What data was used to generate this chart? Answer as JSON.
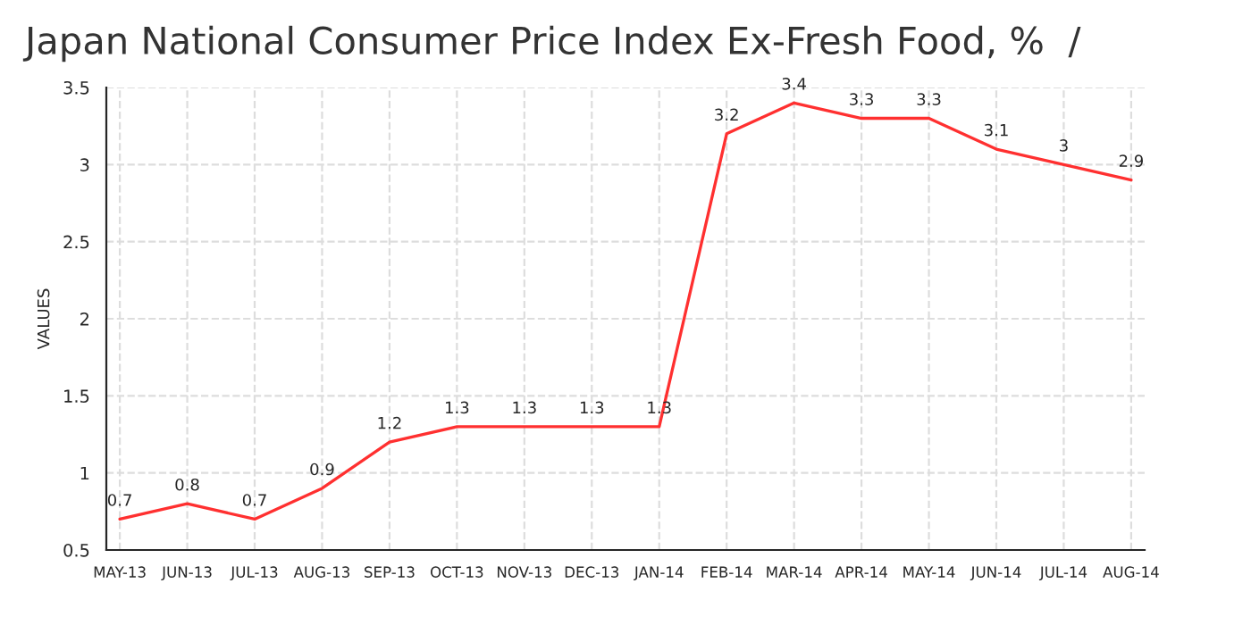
{
  "chart_data": {
    "type": "line",
    "title": "Japan National Consumer Price Index Ex-Fresh Food, %  /",
    "ylabel": "VALUES",
    "categories": [
      "MAY-13",
      "JUN-13",
      "JUL-13",
      "AUG-13",
      "SEP-13",
      "OCT-13",
      "NOV-13",
      "DEC-13",
      "JAN-14",
      "FEB-14",
      "MAR-14",
      "APR-14",
      "MAY-14",
      "JUN-14",
      "JUL-14",
      "AUG-14"
    ],
    "series": [
      {
        "color": "#ff3030",
        "values": [
          0.7,
          0.8,
          0.7,
          0.9,
          1.2,
          1.3,
          1.3,
          1.3,
          1.3,
          3.2,
          3.4,
          3.3,
          3.3,
          3.1,
          3,
          2.9
        ]
      }
    ],
    "ylim": [
      0.5,
      3.5
    ],
    "yticks": [
      0.5,
      1,
      1.5,
      2,
      2.5,
      3,
      3.5
    ],
    "grid": true,
    "data_labels": true,
    "marker": "none",
    "line_style": "solid"
  }
}
